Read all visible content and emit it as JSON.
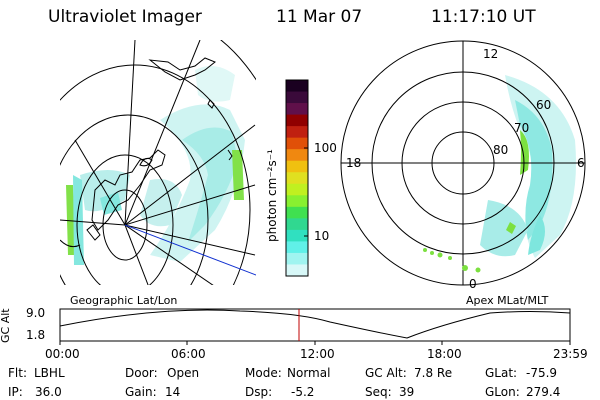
{
  "header": {
    "instrument": "Ultraviolet Imager",
    "date": "11 Mar 07",
    "time": "11:17:10 UT"
  },
  "colorbar": {
    "unit_label": "photon cm⁻²s⁻¹",
    "ticks": [
      "100",
      "10"
    ],
    "colors": [
      "#1a0020",
      "#3a0a3a",
      "#60104a",
      "#900000",
      "#c02010",
      "#e05008",
      "#f08810",
      "#f0c010",
      "#e0e020",
      "#c0f020",
      "#88f030",
      "#40e050",
      "#30d890",
      "#30e0c0",
      "#60f0e8",
      "#a0f4f0",
      "#d8f8f8"
    ]
  },
  "left_panel": {
    "caption": "Geographic Lat/Lon"
  },
  "right_panel": {
    "caption": "Apex MLat/MLT",
    "mlt_labels": {
      "top": "12",
      "left": "18",
      "right": "6",
      "bottom": "0"
    },
    "lat_labels": [
      "60",
      "70",
      "80"
    ]
  },
  "altitude_plot": {
    "ylabel": "GC Alt",
    "yticks": [
      "9.0",
      "1.8"
    ],
    "xticks": [
      "00:00",
      "06:00",
      "12:00",
      "18:00",
      "23:59"
    ],
    "current_time_color": "#c00000"
  },
  "status": {
    "flt_label": "Flt:",
    "flt_value": "LBHL",
    "ip_label": "IP:",
    "ip_value": "36.0",
    "door_label": "Door:",
    "door_value": "Open",
    "gain_label": "Gain:",
    "gain_value": "14",
    "mode_label": "Mode:",
    "mode_value": "Normal",
    "dsp_label": "Dsp:",
    "dsp_value": "-5.2",
    "gcalt_label": "GC Alt:",
    "gcalt_value": "7.8 Re",
    "seq_label": "Seq:",
    "seq_value": "39",
    "glat_label": "GLat:",
    "glat_value": "-75.9",
    "glon_label": "GLon:",
    "glon_value": "279.4"
  },
  "colors": {
    "aurora_light": "#c8f2f0",
    "aurora_mid": "#7ee6de",
    "aurora_green": "#7ce040",
    "line_blue": "#1030d0"
  }
}
